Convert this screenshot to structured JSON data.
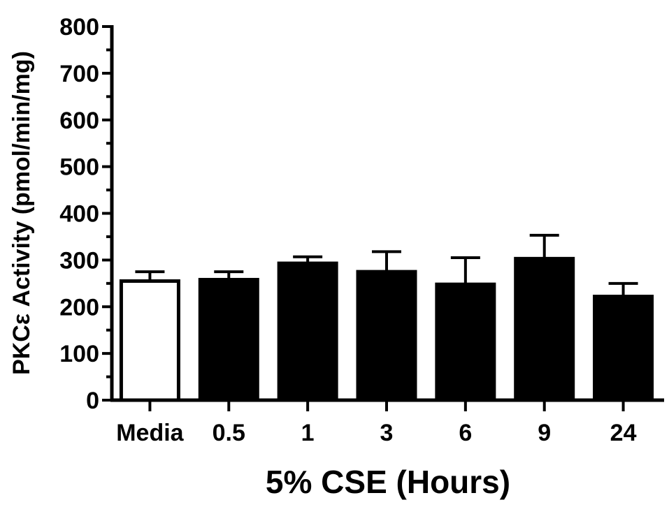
{
  "chart_data": {
    "type": "bar",
    "categories": [
      "Media",
      "0.5",
      "1",
      "3",
      "6",
      "9",
      "24"
    ],
    "values": [
      255,
      258,
      293,
      275,
      248,
      303,
      222
    ],
    "errors": [
      20,
      17,
      14,
      43,
      57,
      50,
      28
    ],
    "bar_fills": [
      "#ffffff",
      "#000000",
      "#000000",
      "#000000",
      "#000000",
      "#000000",
      "#000000"
    ],
    "xlabel": "5% CSE (Hours)",
    "ylabel": "PKCε Activity (pmol/min/mg)",
    "ylim": [
      0,
      800
    ],
    "yticks": [
      "0",
      "100",
      "200",
      "300",
      "400",
      "500",
      "600",
      "700",
      "800"
    ],
    "grid": false
  }
}
